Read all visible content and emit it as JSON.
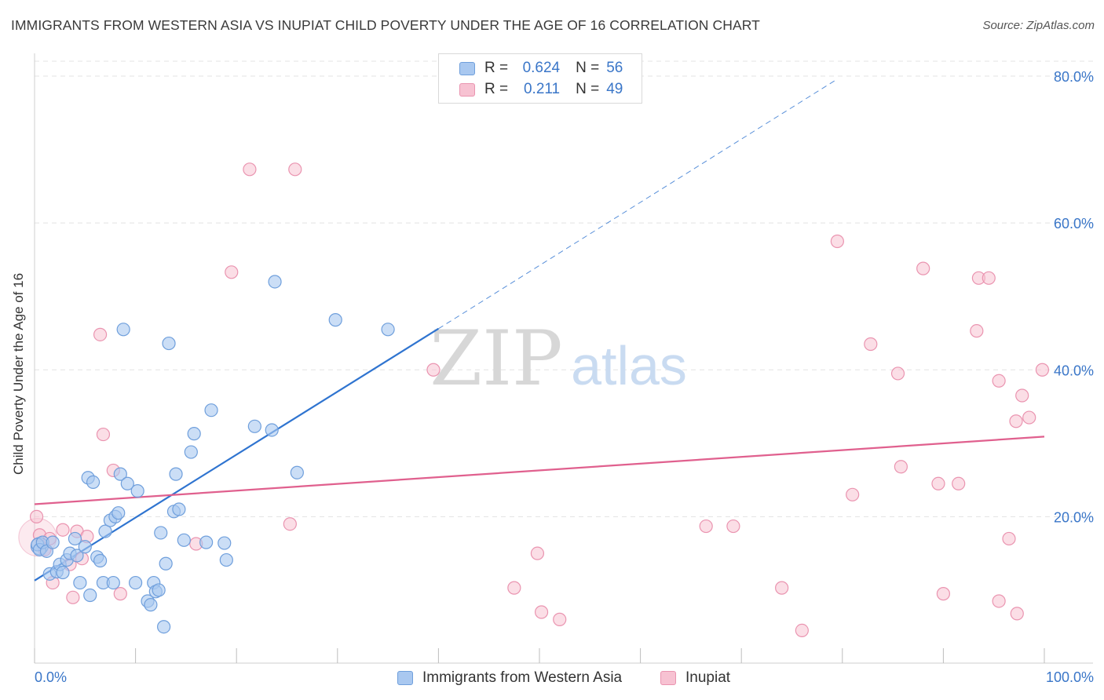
{
  "title": "IMMIGRANTS FROM WESTERN ASIA VS INUPIAT CHILD POVERTY UNDER THE AGE OF 16 CORRELATION CHART",
  "source": "Source: ZipAtlas.com",
  "watermark": {
    "zip": "ZIP",
    "atlas": "atlas"
  },
  "legend": {
    "r_label": "R =",
    "n_label": "N =",
    "series1": {
      "r": "0.624",
      "n": "56"
    },
    "series2": {
      "r": "0.211",
      "n": "49"
    }
  },
  "colors": {
    "series1_fill": "#a9c8f0",
    "series1_stroke": "#6f9fdc",
    "series1_line": "#2f74d0",
    "series2_fill": "#f7c2d2",
    "series2_stroke": "#ea94b0",
    "series2_line": "#e0608e",
    "axis_text": "#3a76c8",
    "grid": "#e3e3e3"
  },
  "chart_data": {
    "type": "scatter",
    "title": "IMMIGRANTS FROM WESTERN ASIA VS INUPIAT CHILD POVERTY UNDER THE AGE OF 16 CORRELATION CHART",
    "xlabel": "",
    "ylabel": "Child Poverty Under the Age of 16",
    "xlim": [
      0,
      100
    ],
    "ylim": [
      0,
      82
    ],
    "x_tick_labels": [
      "0.0%",
      "100.0%"
    ],
    "y_ticks": [
      20,
      40,
      60,
      80
    ],
    "y_tick_labels": [
      "20.0%",
      "40.0%",
      "60.0%",
      "80.0%"
    ],
    "grid": true,
    "legend_position": "top-center",
    "series": [
      {
        "name": "Immigrants from Western Asia",
        "r": 0.624,
        "n": 56,
        "trendline": {
          "x": [
            0,
            40
          ],
          "y": [
            11.3,
            45.6
          ],
          "dashed_extension_to": [
            79.5,
            79.6
          ]
        },
        "points": [
          [
            0.3,
            16.2
          ],
          [
            0.5,
            15.5
          ],
          [
            0.8,
            16.5
          ],
          [
            1.2,
            15.3
          ],
          [
            1.5,
            12.2
          ],
          [
            1.8,
            16.5
          ],
          [
            2.2,
            12.5
          ],
          [
            2.5,
            13.5
          ],
          [
            2.8,
            12.4
          ],
          [
            3.2,
            14.1
          ],
          [
            3.5,
            15.0
          ],
          [
            4.0,
            17.0
          ],
          [
            4.2,
            14.7
          ],
          [
            4.5,
            11.0
          ],
          [
            5.0,
            15.9
          ],
          [
            5.3,
            25.3
          ],
          [
            5.5,
            9.3
          ],
          [
            5.8,
            24.7
          ],
          [
            6.2,
            14.5
          ],
          [
            6.5,
            14.0
          ],
          [
            6.8,
            11.0
          ],
          [
            7.0,
            18.0
          ],
          [
            7.5,
            19.5
          ],
          [
            7.8,
            11.0
          ],
          [
            8.0,
            20.0
          ],
          [
            8.3,
            20.5
          ],
          [
            8.5,
            25.8
          ],
          [
            8.8,
            45.5
          ],
          [
            9.2,
            24.5
          ],
          [
            10.2,
            23.5
          ],
          [
            10.0,
            11.0
          ],
          [
            11.2,
            8.5
          ],
          [
            11.5,
            8.0
          ],
          [
            11.8,
            11.0
          ],
          [
            12.0,
            9.8
          ],
          [
            12.3,
            10.0
          ],
          [
            12.5,
            17.8
          ],
          [
            12.8,
            5.0
          ],
          [
            13.0,
            13.6
          ],
          [
            13.3,
            43.6
          ],
          [
            13.8,
            20.7
          ],
          [
            14.0,
            25.8
          ],
          [
            14.3,
            21.0
          ],
          [
            14.8,
            16.8
          ],
          [
            15.5,
            28.8
          ],
          [
            15.8,
            31.3
          ],
          [
            17.0,
            16.5
          ],
          [
            17.5,
            34.5
          ],
          [
            18.8,
            16.4
          ],
          [
            19.0,
            14.1
          ],
          [
            21.8,
            32.3
          ],
          [
            23.5,
            31.8
          ],
          [
            23.8,
            52.0
          ],
          [
            26.0,
            26.0
          ],
          [
            29.8,
            46.8
          ],
          [
            35.0,
            45.5
          ]
        ]
      },
      {
        "name": "Inupiat",
        "r": 0.211,
        "n": 49,
        "trendline": {
          "x": [
            0,
            100
          ],
          "y": [
            21.7,
            30.9
          ]
        },
        "points": [
          [
            0.2,
            20.0
          ],
          [
            0.5,
            17.5
          ],
          [
            1.0,
            15.5
          ],
          [
            1.5,
            17.0
          ],
          [
            1.8,
            11.0
          ],
          [
            2.8,
            18.2
          ],
          [
            3.5,
            13.5
          ],
          [
            3.8,
            9.0
          ],
          [
            4.2,
            18.0
          ],
          [
            4.7,
            14.3
          ],
          [
            5.2,
            17.3
          ],
          [
            6.5,
            44.8
          ],
          [
            6.8,
            31.2
          ],
          [
            7.8,
            26.3
          ],
          [
            8.5,
            9.5
          ],
          [
            16.0,
            16.3
          ],
          [
            19.5,
            53.3
          ],
          [
            21.3,
            67.3
          ],
          [
            25.8,
            67.3
          ],
          [
            25.3,
            19.0
          ],
          [
            39.5,
            40.0
          ],
          [
            47.5,
            10.3
          ],
          [
            49.8,
            15.0
          ],
          [
            50.2,
            7.0
          ],
          [
            52.0,
            6.0
          ],
          [
            66.5,
            18.7
          ],
          [
            69.2,
            18.7
          ],
          [
            74.0,
            10.3
          ],
          [
            76.0,
            4.5
          ],
          [
            79.5,
            57.5
          ],
          [
            81.0,
            23.0
          ],
          [
            82.8,
            43.5
          ],
          [
            85.5,
            39.5
          ],
          [
            85.8,
            26.8
          ],
          [
            88.0,
            53.8
          ],
          [
            89.5,
            24.5
          ],
          [
            90.0,
            9.5
          ],
          [
            91.5,
            24.5
          ],
          [
            93.3,
            45.3
          ],
          [
            93.5,
            52.5
          ],
          [
            94.5,
            52.5
          ],
          [
            95.5,
            8.5
          ],
          [
            95.5,
            38.5
          ],
          [
            96.5,
            17.0
          ],
          [
            97.2,
            33.0
          ],
          [
            97.3,
            6.8
          ],
          [
            97.8,
            36.5
          ],
          [
            98.5,
            33.5
          ],
          [
            99.8,
            40.0
          ]
        ]
      }
    ]
  }
}
